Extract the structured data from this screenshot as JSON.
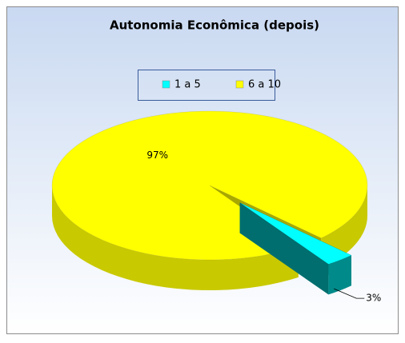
{
  "chart_data": {
    "type": "pie",
    "title": "Autonomia Econômica (depois)",
    "categories": [
      "1 a 5",
      "6 a 10"
    ],
    "values": [
      3,
      97
    ],
    "value_labels": [
      "3%",
      "97%"
    ],
    "colors": [
      "#00ffff",
      "#ffff00"
    ],
    "legend": "top"
  }
}
